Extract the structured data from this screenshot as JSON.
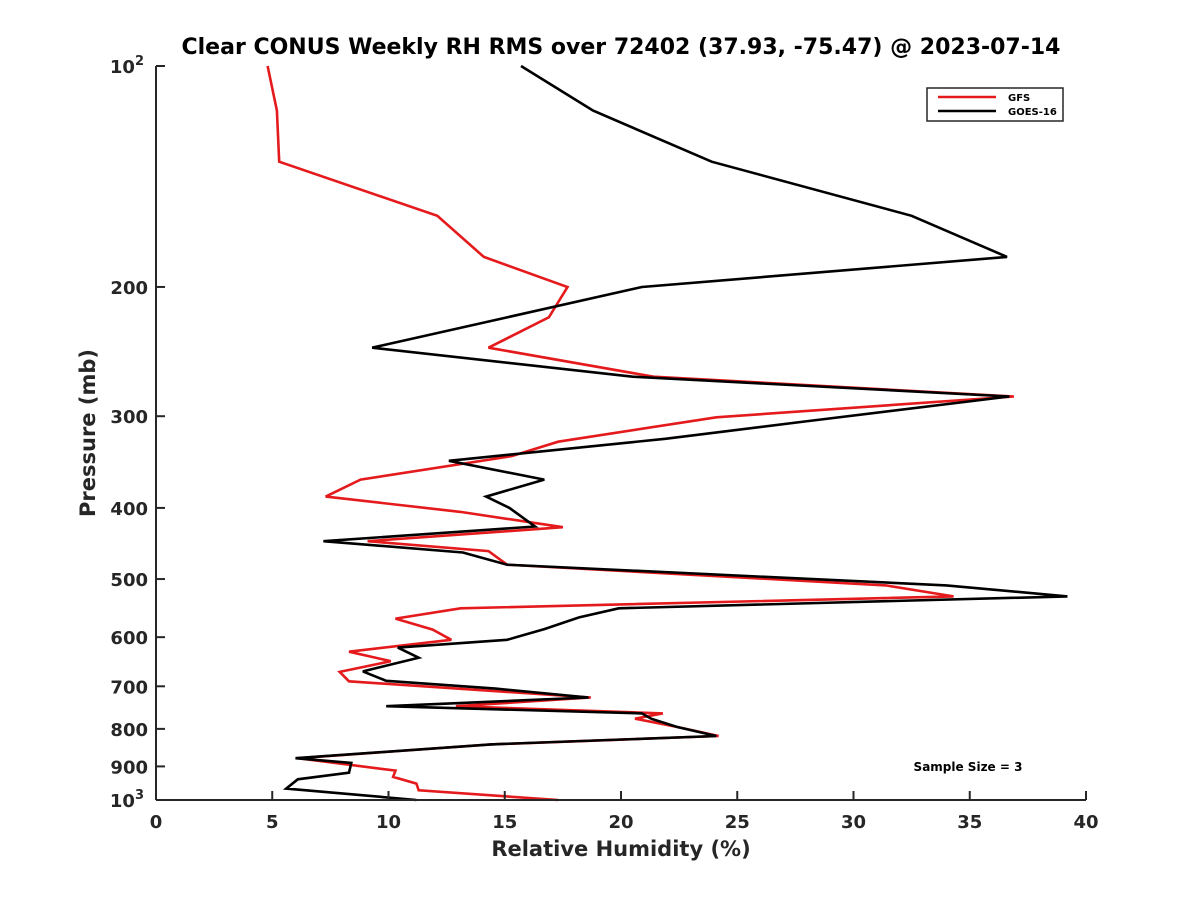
{
  "chart_data": {
    "type": "line",
    "title": "Clear CONUS Weekly RH RMS over 72402 (37.93, -75.47) @ 2023-07-14",
    "xlabel": "Relative Humidity (%)",
    "ylabel": "Pressure (mb)",
    "xlim": [
      0,
      40
    ],
    "ylim": [
      100,
      1000
    ],
    "yscale": "log",
    "y_reversed": true,
    "xticks": [
      0,
      5,
      10,
      15,
      20,
      25,
      30,
      35,
      40
    ],
    "yticks": [
      {
        "value": 100,
        "label": "10",
        "sup": "2"
      },
      {
        "value": 200,
        "label": "200",
        "sup": ""
      },
      {
        "value": 300,
        "label": "300",
        "sup": ""
      },
      {
        "value": 400,
        "label": "400",
        "sup": ""
      },
      {
        "value": 500,
        "label": "500",
        "sup": ""
      },
      {
        "value": 600,
        "label": "600",
        "sup": ""
      },
      {
        "value": 700,
        "label": "700",
        "sup": ""
      },
      {
        "value": 800,
        "label": "800",
        "sup": ""
      },
      {
        "value": 900,
        "label": "900",
        "sup": ""
      },
      {
        "value": 1000,
        "label": "10",
        "sup": "3"
      }
    ],
    "legend_position": "top-right",
    "annotation": "Sample Size = 3",
    "series": [
      {
        "name": "GFS",
        "color": "#e41a1c",
        "points": [
          [
            4.8,
            100
          ],
          [
            5.2,
            115
          ],
          [
            5.3,
            135
          ],
          [
            12.1,
            160
          ],
          [
            14.1,
            182
          ],
          [
            17.7,
            200
          ],
          [
            16.9,
            220
          ],
          [
            14.3,
            242
          ],
          [
            21.4,
            265
          ],
          [
            36.9,
            282
          ],
          [
            24.1,
            301
          ],
          [
            17.3,
            325
          ],
          [
            15.3,
            340
          ],
          [
            8.8,
            366
          ],
          [
            7.3,
            386
          ],
          [
            13.1,
            405
          ],
          [
            17.5,
            425
          ],
          [
            9.1,
            444
          ],
          [
            14.3,
            458
          ],
          [
            15.1,
            478
          ],
          [
            31.4,
            510
          ],
          [
            34.3,
            528
          ],
          [
            13.1,
            548
          ],
          [
            10.3,
            566
          ],
          [
            11.9,
            586
          ],
          [
            12.7,
            605
          ],
          [
            8.3,
            628
          ],
          [
            10.1,
            647
          ],
          [
            7.9,
            669
          ],
          [
            8.3,
            689
          ],
          [
            18.7,
            725
          ],
          [
            12.9,
            745
          ],
          [
            21.8,
            762
          ],
          [
            20.6,
            775
          ],
          [
            22.4,
            795
          ],
          [
            24.2,
            818
          ],
          [
            14.4,
            840
          ],
          [
            6.1,
            877
          ],
          [
            10.3,
            912
          ],
          [
            10.2,
            930
          ],
          [
            11.2,
            950
          ],
          [
            11.3,
            970
          ],
          [
            17.3,
            1000
          ]
        ]
      },
      {
        "name": "GOES-16",
        "color": "#000000",
        "points": [
          [
            15.7,
            100
          ],
          [
            18.8,
            115
          ],
          [
            23.9,
            135
          ],
          [
            32.5,
            160
          ],
          [
            36.6,
            182
          ],
          [
            20.9,
            200
          ],
          [
            9.3,
            242
          ],
          [
            20.5,
            265
          ],
          [
            36.7,
            282
          ],
          [
            27.9,
            305
          ],
          [
            21.9,
            322
          ],
          [
            12.6,
            345
          ],
          [
            16.7,
            366
          ],
          [
            14.2,
            386
          ],
          [
            15.2,
            400
          ],
          [
            16.3,
            424
          ],
          [
            7.2,
            444
          ],
          [
            13.2,
            460
          ],
          [
            15.1,
            478
          ],
          [
            34.0,
            510
          ],
          [
            39.2,
            528
          ],
          [
            19.9,
            548
          ],
          [
            18.2,
            564
          ],
          [
            16.7,
            585
          ],
          [
            15.1,
            605
          ],
          [
            10.4,
            620
          ],
          [
            11.3,
            640
          ],
          [
            8.9,
            668
          ],
          [
            9.9,
            688
          ],
          [
            14.6,
            705
          ],
          [
            18.6,
            725
          ],
          [
            9.9,
            745
          ],
          [
            20.9,
            762
          ],
          [
            21.3,
            775
          ],
          [
            22.4,
            795
          ],
          [
            24.1,
            818
          ],
          [
            14.4,
            840
          ],
          [
            6.0,
            877
          ],
          [
            8.4,
            890
          ],
          [
            8.3,
            918
          ],
          [
            6.1,
            937
          ],
          [
            5.6,
            965
          ],
          [
            11.2,
            1000
          ]
        ]
      }
    ]
  }
}
